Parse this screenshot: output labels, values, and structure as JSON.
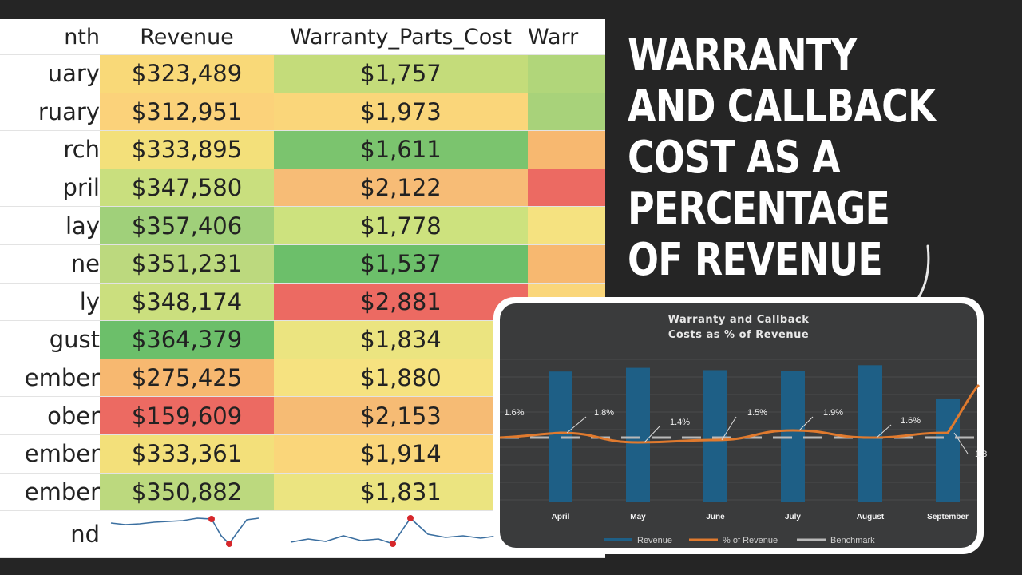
{
  "headline": "WARRANTY AND CALLBACK COST AS A PERCENTAGE OF REVENUE",
  "table": {
    "headers": [
      "nth",
      "Revenue",
      "Warranty_Parts_Cost",
      "Warr"
    ],
    "rows": [
      {
        "month": "uary",
        "revenue": "$323,489",
        "cost": "$1,757",
        "rev_color": "#f9d978",
        "cost_color": "#c4dc7a",
        "extra_color": "#b1d67a"
      },
      {
        "month": "ruary",
        "revenue": "$312,951",
        "cost": "$1,973",
        "rev_color": "#fbd27a",
        "cost_color": "#fad67a",
        "extra_color": "#a8d27a"
      },
      {
        "month": "rch",
        "revenue": "$333,895",
        "cost": "$1,611",
        "rev_color": "#f3e07a",
        "cost_color": "#7bc46e",
        "extra_color": "#f7b870"
      },
      {
        "month": "pril",
        "revenue": "$347,580",
        "cost": "$2,122",
        "rev_color": "#c9df7e",
        "cost_color": "#f7bc76",
        "extra_color": "#ec6a62"
      },
      {
        "month": "lay",
        "revenue": "$357,406",
        "cost": "$1,778",
        "rev_color": "#a0d07a",
        "cost_color": "#cde27e",
        "extra_color": "#f5e280"
      },
      {
        "month": "ne",
        "revenue": "$351,231",
        "cost": "$1,537",
        "rev_color": "#bcd97e",
        "cost_color": "#6cbf6a",
        "extra_color": "#f7b870"
      },
      {
        "month": "ly",
        "revenue": "$348,174",
        "cost": "$2,881",
        "rev_color": "#cbdf7e",
        "cost_color": "#ec6a62",
        "extra_color": "#fad67a"
      },
      {
        "month": "gust",
        "revenue": "$364,379",
        "cost": "$1,834",
        "rev_color": "#6cbf6a",
        "cost_color": "#ebe480",
        "extra_color": "#f5e280"
      },
      {
        "month": "ember",
        "revenue": "$275,425",
        "cost": "$1,880",
        "rev_color": "#f7b870",
        "cost_color": "#f6e280",
        "extra_color": "#f5e280"
      },
      {
        "month": "ober",
        "revenue": "$159,609",
        "cost": "$2,153",
        "rev_color": "#ec6a62",
        "cost_color": "#f6bb74",
        "extra_color": "#f5e280"
      },
      {
        "month": "ember",
        "revenue": "$333,361",
        "cost": "$1,914",
        "rev_color": "#f3e07a",
        "cost_color": "#fad67a",
        "extra_color": "#f5e280"
      },
      {
        "month": "ember",
        "revenue": "$350,882",
        "cost": "$1,831",
        "rev_color": "#bcd97e",
        "cost_color": "#ebe480",
        "extra_color": "#f5e280"
      }
    ],
    "trend_label": "nd"
  },
  "chart_data": {
    "type": "bar",
    "title": "Warranty and Callback\nCosts as % of Revenue",
    "categories": [
      "April",
      "May",
      "June",
      "July",
      "August",
      "September"
    ],
    "series": [
      {
        "name": "Revenue",
        "type": "bar",
        "values": [
          347580,
          357406,
          351231,
          348174,
          364379,
          275425
        ],
        "color": "#1e5f86"
      },
      {
        "name": "% of Revenue",
        "type": "line",
        "values": [
          1.8,
          1.4,
          1.5,
          1.9,
          1.6,
          1.8
        ],
        "color": "#e07a2e"
      },
      {
        "name": "Benchmark",
        "type": "line",
        "values": [
          1.6,
          1.6,
          1.6,
          1.6,
          1.6,
          1.6
        ],
        "color": "#b9b9b9"
      }
    ],
    "point_labels": [
      "1.6%",
      "1.8%",
      "1.4%",
      "1.5%",
      "1.9%",
      "1.6%",
      "1.8"
    ],
    "legend": [
      "Revenue",
      "% of Revenue",
      "Benchmark"
    ],
    "legend_position": "bottom"
  }
}
